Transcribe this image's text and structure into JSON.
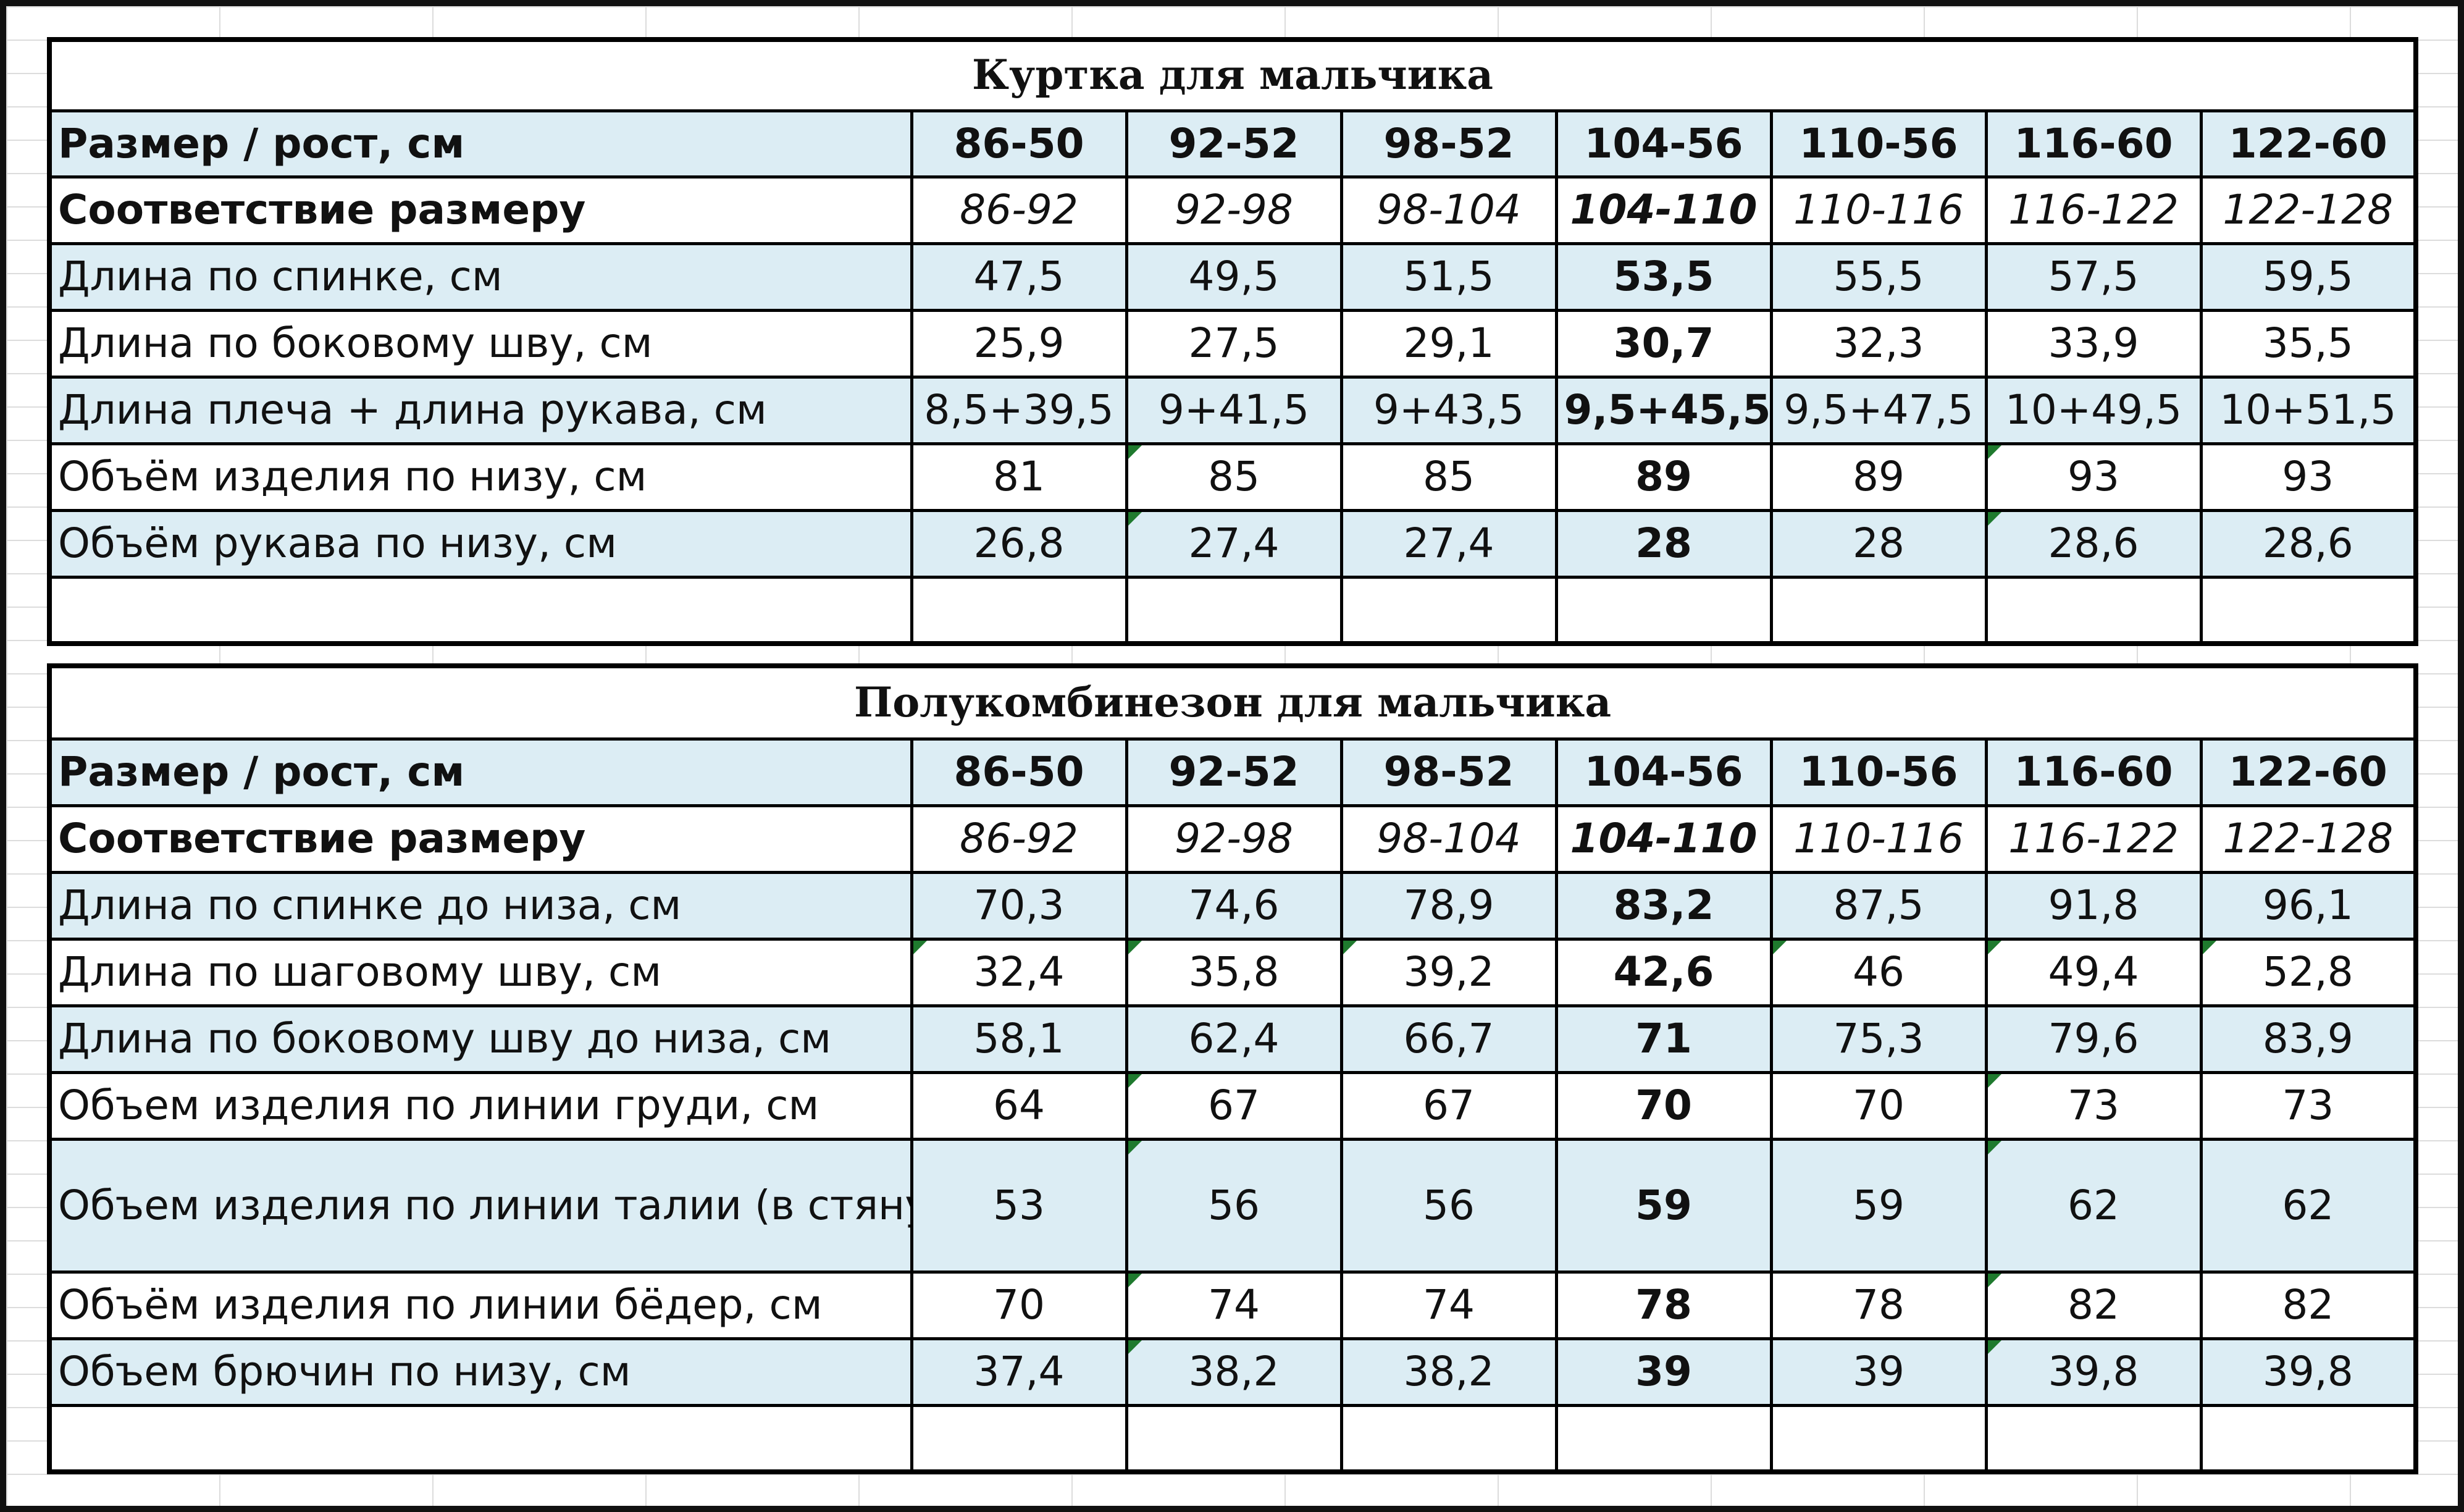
{
  "tables": [
    {
      "title": "Куртка для мальчика",
      "header": {
        "label": "Размер / рост, см",
        "values": [
          "86-50",
          "92-52",
          "98-52",
          "104-56",
          "110-56",
          "116-60",
          "122-60"
        ]
      },
      "correspondence": {
        "label": "Соответствие размеру",
        "values": [
          "86-92",
          "92-98",
          "98-104",
          "104-110",
          "110-116",
          "116-122",
          "122-128"
        ]
      },
      "rows": [
        {
          "label": "Длина по спинке, см",
          "values": [
            "47,5",
            "49,5",
            "51,5",
            "53,5",
            "55,5",
            "57,5",
            "59,5"
          ]
        },
        {
          "label": "Длина по боковому шву, см",
          "values": [
            "25,9",
            "27,5",
            "29,1",
            "30,7",
            "32,3",
            "33,9",
            "35,5"
          ]
        },
        {
          "label": "Длина плеча + длина рукава, см",
          "values": [
            "8,5+39,5",
            "9+41,5",
            "9+43,5",
            "9,5+45,5",
            "9,5+47,5",
            "10+49,5",
            "10+51,5"
          ]
        },
        {
          "label": "Объём изделия по низу, см",
          "values": [
            "81",
            "85",
            "85",
            "89",
            "89",
            "93",
            "93"
          ]
        },
        {
          "label": "Объём рукава по низу, см",
          "values": [
            "26,8",
            "27,4",
            "27,4",
            "28",
            "28",
            "28,6",
            "28,6"
          ]
        }
      ]
    },
    {
      "title": "Полукомбинезон для мальчика",
      "header": {
        "label": "Размер / рост, см",
        "values": [
          "86-50",
          "92-52",
          "98-52",
          "104-56",
          "110-56",
          "116-60",
          "122-60"
        ]
      },
      "correspondence": {
        "label": "Соответствие размеру",
        "values": [
          "86-92",
          "92-98",
          "98-104",
          "104-110",
          "110-116",
          "116-122",
          "122-128"
        ]
      },
      "rows": [
        {
          "label": "Длина по спинке до низа, см",
          "values": [
            "70,3",
            "74,6",
            "78,9",
            "83,2",
            "87,5",
            "91,8",
            "96,1"
          ]
        },
        {
          "label": "Длина по шаговому шву, см",
          "values": [
            "32,4",
            "35,8",
            "39,2",
            "42,6",
            "46",
            "49,4",
            "52,8"
          ]
        },
        {
          "label": "Длина по боковому шву до низа, см",
          "values": [
            "58,1",
            "62,4",
            "66,7",
            "71",
            "75,3",
            "79,6",
            "83,9"
          ]
        },
        {
          "label": "Объем изделия по линии груди, см",
          "values": [
            "64",
            "67",
            "67",
            "70",
            "70",
            "73",
            "73"
          ]
        },
        {
          "label": "Объем изделия по линии талии (в стянутом на резинку виде), см",
          "values": [
            "53",
            "56",
            "56",
            "59",
            "59",
            "62",
            "62"
          ]
        },
        {
          "label": "Объём изделия по линии бёдер, см",
          "values": [
            "70",
            "74",
            "74",
            "78",
            "78",
            "82",
            "82"
          ]
        },
        {
          "label": "Объем брючин по низу, см",
          "values": [
            "37,4",
            "38,2",
            "38,2",
            "39",
            "39",
            "39,8",
            "39,8"
          ]
        }
      ]
    }
  ],
  "colors": {
    "row_fill": "#dcedf4",
    "border": "#000000",
    "cell_marker": "#1f7a2e"
  }
}
